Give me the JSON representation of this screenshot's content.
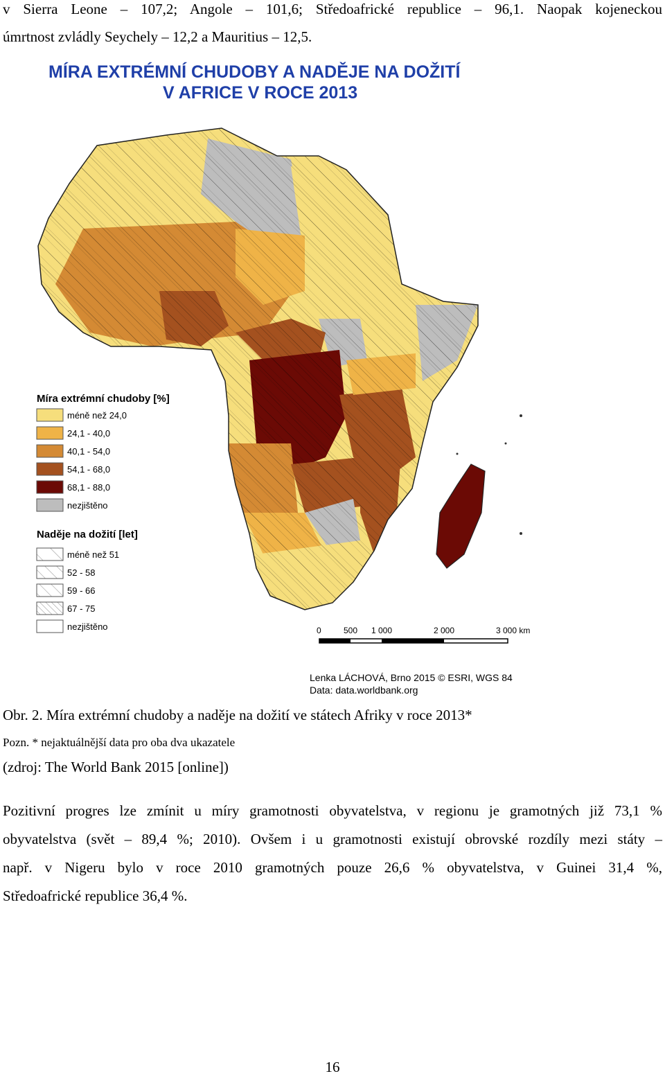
{
  "text": {
    "top_line1": "v Sierra Leone – 107,2; Angole – 101,6; Středoafrické republice – 96,1. Naopak kojeneckou",
    "top_line2": "úmrtnost zvládly Seychely – 12,2 a Mauritius – 12,5.",
    "caption": "Obr. 2. Míra extrémní chudoby a naděje na dožití ve státech Afriky v roce 2013*",
    "note": "Pozn. * nejaktuálnější data pro oba dva ukazatele",
    "source": "(zdroj: The World Bank 2015 [online])",
    "para_line1": "Pozitivní progres lze zmínit u míry gramotnosti obyvatelstva, v regionu je gramotných již 73,1 %",
    "para_line2": "obyvatelstva (svět – 89,4 %; 2010). Ovšem i u gramotnosti existují obrovské rozdíly mezi státy –",
    "para_line3": "např. v Nigeru bylo v roce 2010 gramotných pouze 26,6 % obyvatelstva, v Guinei 31,4 %,",
    "para_line4": "Středoafrické republice 36,4 %.",
    "page_number": "16"
  },
  "map": {
    "title_line1": "MÍRA EXTRÉMNÍ CHUDOBY A NADĚJE NA DOŽITÍ",
    "title_line2": "V AFRICE V ROCE 2013",
    "title_color": "#1f3fa8",
    "legend_poverty_title": "Míra extrémní chudoby [%]",
    "legend_poverty": [
      {
        "label": "méně než 24,0",
        "color": "#f6de7c"
      },
      {
        "label": "24,1 - 40,0",
        "color": "#efb347"
      },
      {
        "label": "40,1 - 54,0",
        "color": "#d48a34"
      },
      {
        "label": "54,1 - 68,0",
        "color": "#a4511f"
      },
      {
        "label": "68,1 - 88,0",
        "color": "#6b0a05"
      },
      {
        "label": "nezjištěno",
        "color": "#bdbdbd"
      }
    ],
    "legend_life_title": "Naděje na dožití [let]",
    "legend_life": [
      {
        "label": "méně než 51"
      },
      {
        "label": "52 - 58"
      },
      {
        "label": "59 - 66"
      },
      {
        "label": "67 - 75"
      },
      {
        "label": "nezjištěno"
      }
    ],
    "scale_labels": [
      "0",
      "500",
      "1 000",
      "2 000",
      "3 000 km"
    ],
    "credit_line1": "Lenka LÁCHOVÁ, Brno 2015 © ESRI, WGS 84",
    "credit_line2": "Data: data.worldbank.org"
  }
}
